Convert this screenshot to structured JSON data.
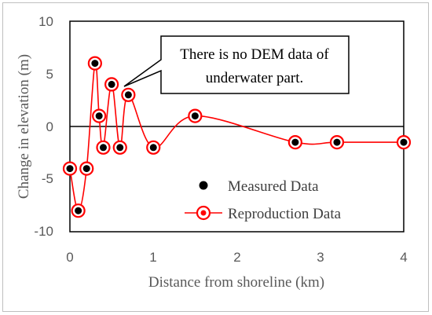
{
  "chart_data": {
    "type": "scatter",
    "xlabel": "Distance from shoreline (km)",
    "ylabel": "Change in elevation (m)",
    "xlim": [
      0,
      4
    ],
    "ylim": [
      -10,
      10
    ],
    "x_ticks": [
      "0",
      "1",
      "2",
      "3",
      "4"
    ],
    "y_ticks": [
      "10",
      "5",
      "0",
      "-5",
      "-10"
    ],
    "grid": false,
    "legend_position": "bottom-right",
    "series": [
      {
        "name": "Measured Data",
        "style": "filled-circle",
        "color": "#000000",
        "x": [
          0,
          0.1,
          0.2,
          0.3,
          0.35,
          0.4,
          0.5,
          0.6,
          0.7,
          1.0,
          1.5,
          2.7,
          3.2,
          4.0
        ],
        "y": [
          -4,
          -8,
          -4,
          6,
          1,
          -2,
          4,
          -2,
          3,
          -2,
          1,
          -1.5,
          -1.5,
          -1.5
        ]
      },
      {
        "name": "Reproduction Data",
        "style": "line-open-circle",
        "color": "#ff0000",
        "x": [
          0,
          0.1,
          0.2,
          0.3,
          0.35,
          0.4,
          0.5,
          0.6,
          0.7,
          1.0,
          1.5,
          2.7,
          3.2,
          4.0
        ],
        "y": [
          -4,
          -8,
          -4,
          6,
          1,
          -2,
          4,
          -2,
          3,
          -2,
          1,
          -1.5,
          -1.5,
          -1.5
        ]
      }
    ],
    "annotations": [
      {
        "text_lines": [
          "There is no DEM data of",
          "underwater part."
        ],
        "points_to": [
          0.55,
          3.5
        ]
      }
    ]
  }
}
